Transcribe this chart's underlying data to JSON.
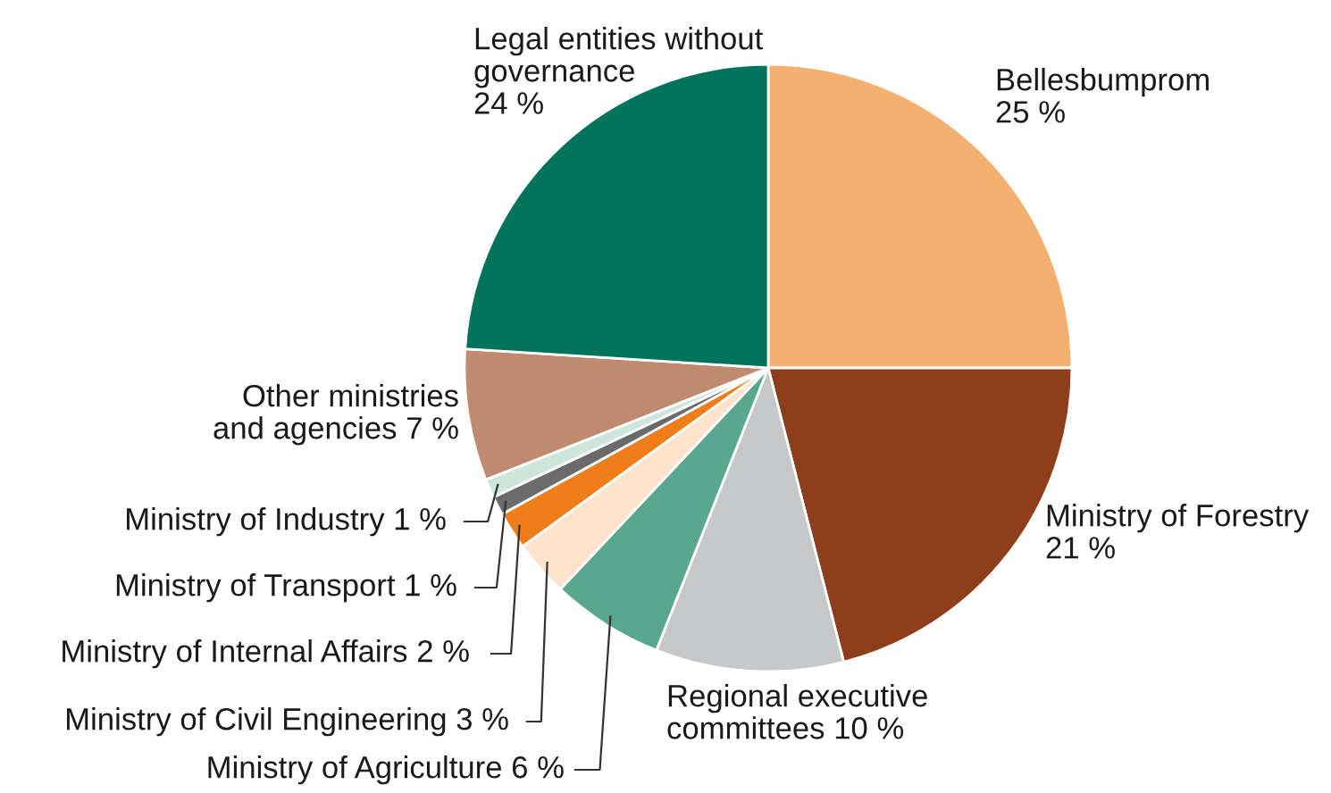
{
  "chart_data": {
    "type": "pie",
    "categories": [
      "Bellesbumprom",
      "Ministry of Forestry",
      "Regional executive committees",
      "Ministry of Agriculture",
      "Ministry of Civil Engineering",
      "Ministry of Internal Affairs",
      "Ministry of Transport",
      "Ministry of Industry",
      "Other ministries and agencies",
      "Legal entities without governance"
    ],
    "values": [
      25,
      21,
      10,
      6,
      3,
      2,
      1,
      1,
      7,
      24
    ],
    "value_labels": [
      "25 %",
      "21 %",
      "10 %",
      "6 %",
      "3 %",
      "2 %",
      "1 %",
      "1 %",
      "7 %",
      "24 %"
    ],
    "colors": [
      "#f5b06f",
      "#8f3e1c",
      "#c6c7c9",
      "#5aa78f",
      "#fde3cc",
      "#ef7d1a",
      "#6b6b6b",
      "#cde5da",
      "#bf8a6e",
      "#00745a"
    ]
  }
}
